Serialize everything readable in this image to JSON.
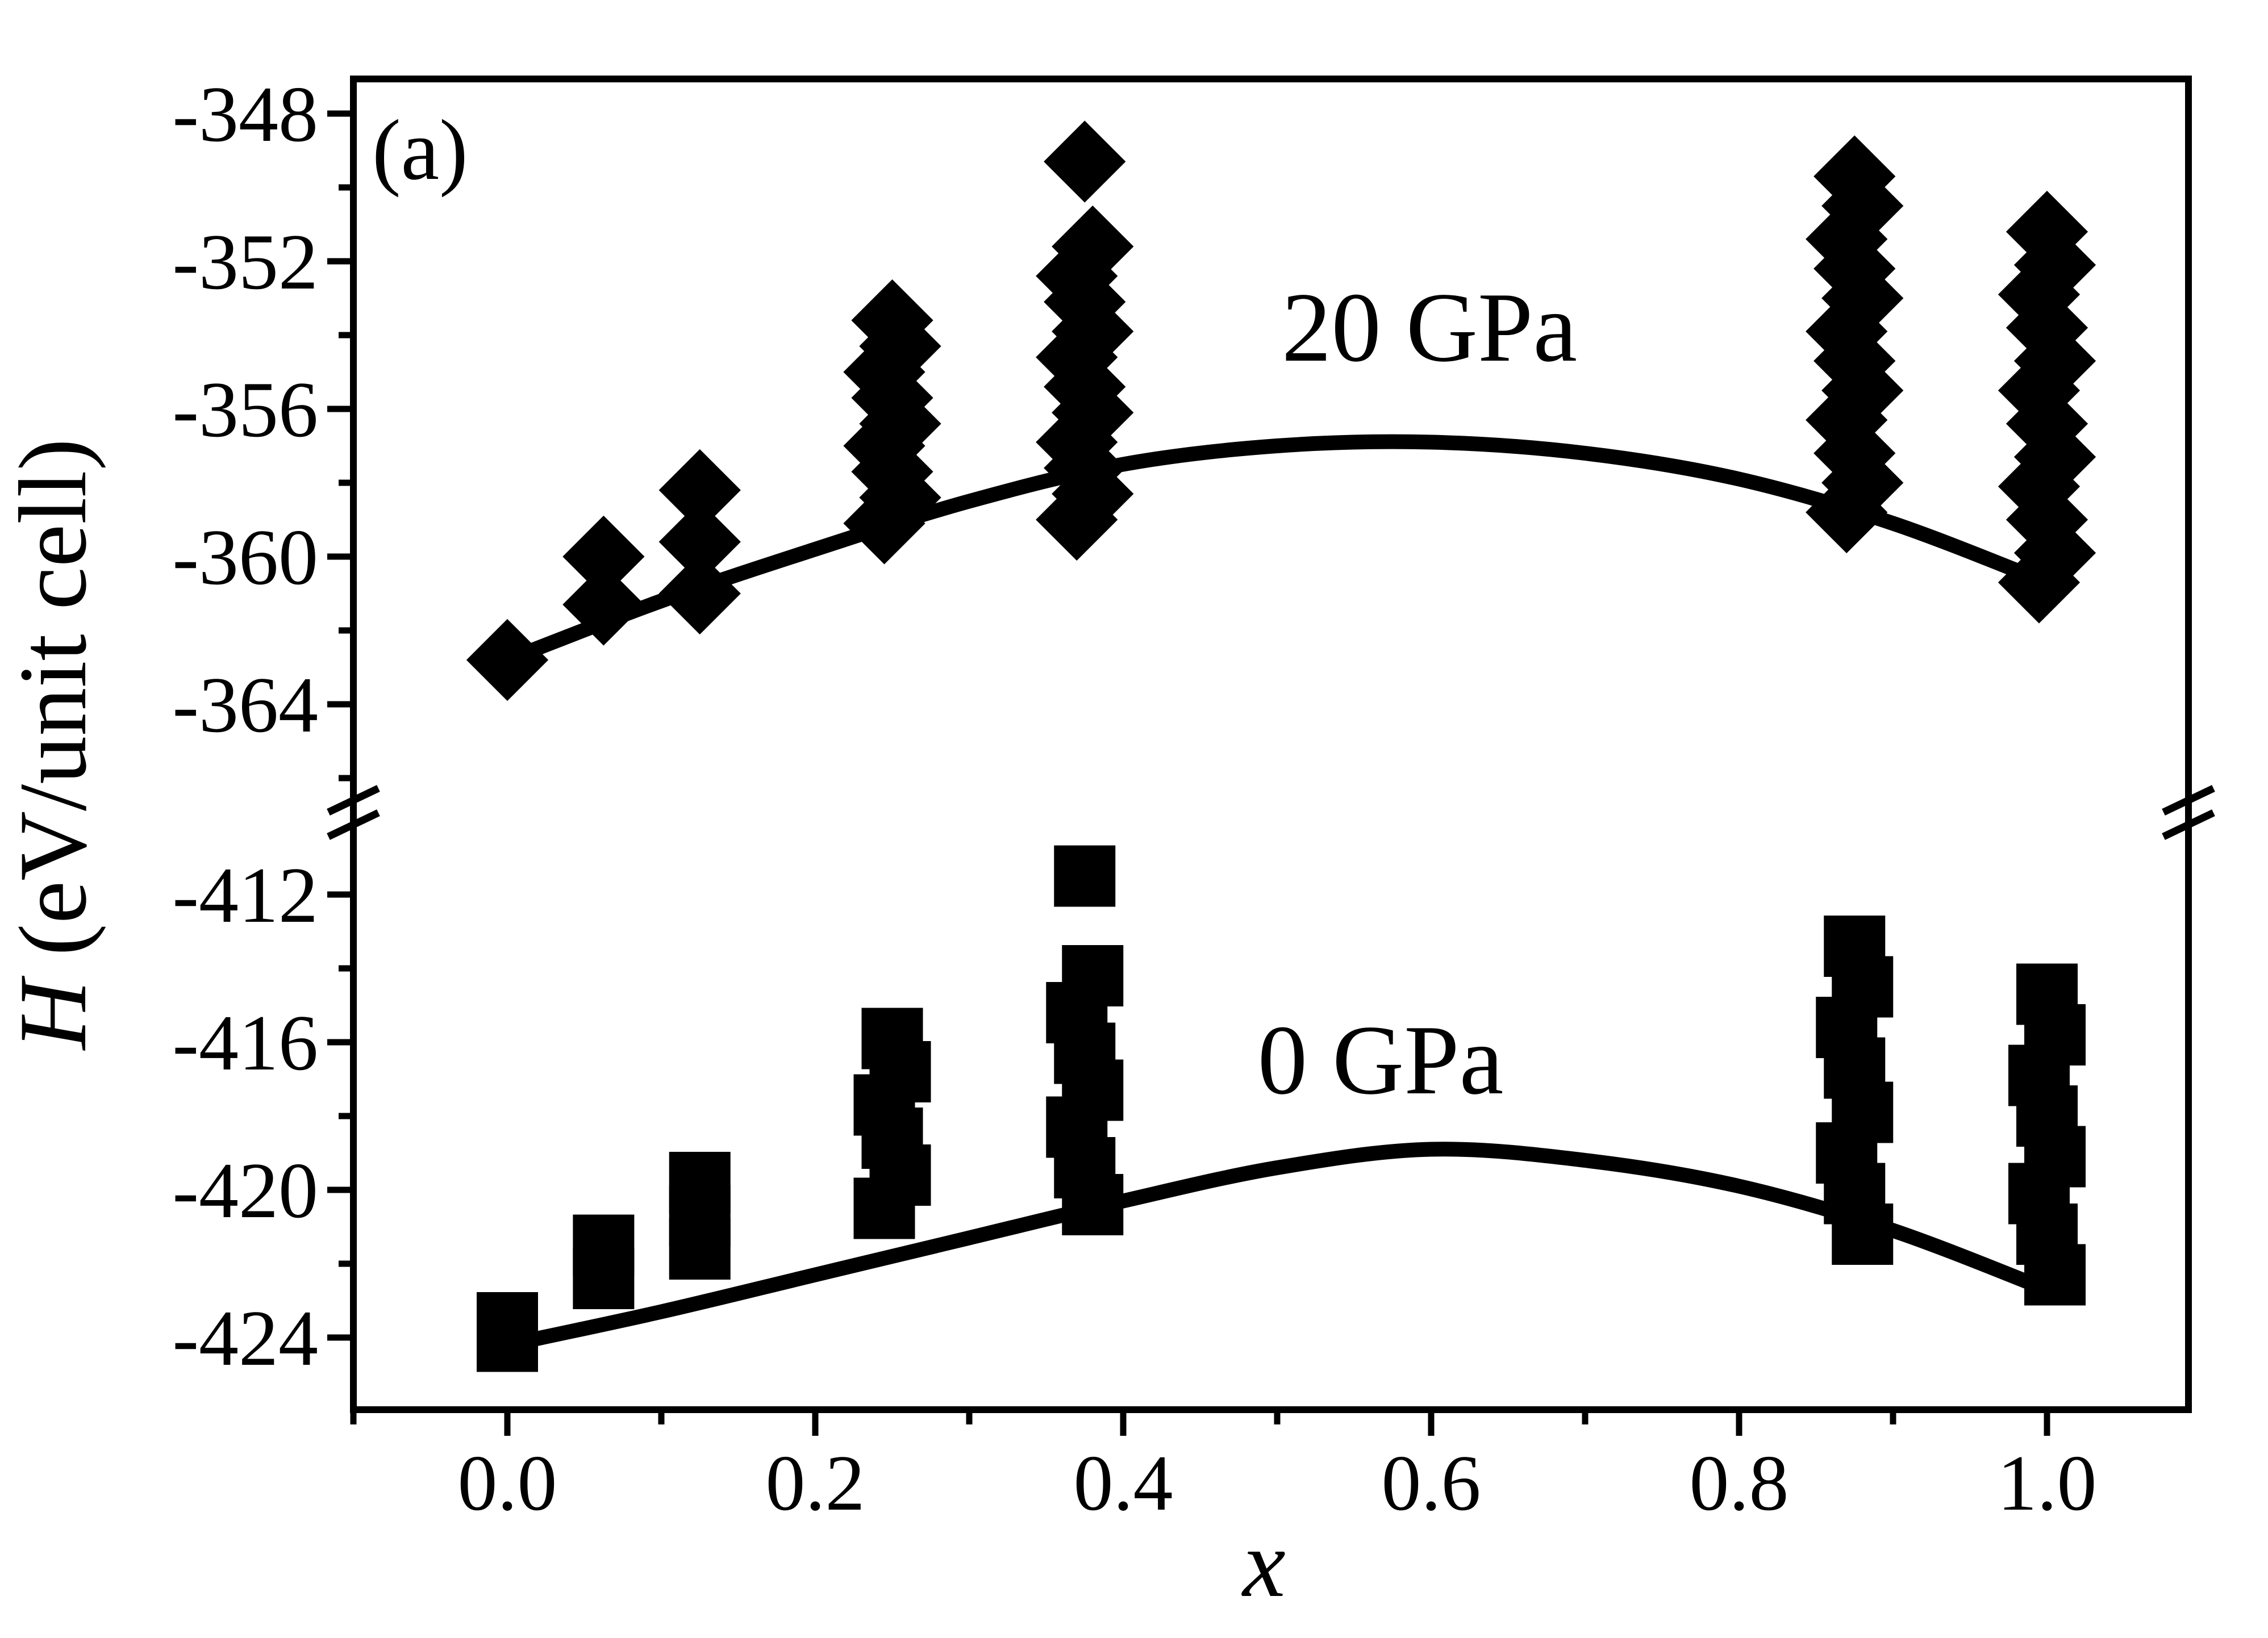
{
  "figure": {
    "panel_label": "(a)",
    "background_color": "#ffffff",
    "ink_color": "#000000"
  },
  "chart_data": {
    "type": "scatter",
    "title": "",
    "xlabel": "x",
    "ylabel_italic_part": "H",
    "ylabel_rest_part": " (eV/unit cell)",
    "ylabel_full": "H (eV/unit cell)",
    "x_axis": {
      "min": -0.1,
      "max": 1.092,
      "major_ticks": [
        0.0,
        0.2,
        0.4,
        0.6,
        0.8,
        1.0
      ],
      "major_tick_labels": [
        "0.0",
        "0.2",
        "0.4",
        "0.6",
        "0.8",
        "1.0"
      ],
      "minor_ticks": [
        -0.1,
        0.1,
        0.3,
        0.5,
        0.7,
        0.9
      ],
      "grid": false
    },
    "y_axis": {
      "broken": true,
      "units": "eV/unit cell",
      "top_segment": {
        "range_low": -366.3,
        "range_high": -347.1,
        "major_ticks": [
          -348,
          -352,
          -356,
          -360,
          -364
        ],
        "major_tick_labels": [
          "-348",
          "-352",
          "-356",
          "-360",
          "-364"
        ],
        "minor_ticks": [
          -350,
          -354,
          -358,
          -362,
          -366
        ]
      },
      "bottom_segment": {
        "range_low": -425.9,
        "range_high": -410.6,
        "major_ticks": [
          -412,
          -416,
          -420,
          -424
        ],
        "major_tick_labels": [
          "-412",
          "-416",
          "-420",
          "-424"
        ],
        "minor_ticks": [
          -414,
          -418,
          -422
        ]
      }
    },
    "legend_position": "none",
    "series": [
      {
        "name": "20 GPa",
        "label": "20 GPa",
        "marker": "diamond",
        "segment": "top",
        "clusters": [
          {
            "x": 0.0,
            "H": [
              -362.8
            ]
          },
          {
            "x": 0.0625,
            "H": [
              -360.0,
              -361.3
            ]
          },
          {
            "x": 0.125,
            "H": [
              -358.2,
              -359.6,
              -361.0
            ]
          },
          {
            "x": 0.25,
            "H": [
              -353.6,
              -354.3,
              -355.0,
              -355.7,
              -356.4,
              -357.0,
              -357.7,
              -358.4,
              -359.1
            ]
          },
          {
            "x": 0.375,
            "H": [
              -349.3,
              -351.6,
              -352.4,
              -353.1,
              -353.9,
              -354.6,
              -355.4,
              -356.1,
              -356.9,
              -357.6,
              -358.3,
              -359.0
            ]
          },
          {
            "x": 0.875,
            "H": [
              -349.7,
              -350.5,
              -351.4,
              -352.2,
              -353.0,
              -353.9,
              -354.7,
              -355.5,
              -356.3,
              -357.2,
              -358.0,
              -358.8
            ]
          },
          {
            "x": 1.0,
            "H": [
              -351.2,
              -352.1,
              -352.9,
              -353.8,
              -354.7,
              -355.5,
              -356.4,
              -357.3,
              -358.1,
              -359.0,
              -359.9,
              -360.7
            ]
          }
        ],
        "fit_curve": {
          "x": [
            0.0,
            0.1,
            0.2,
            0.3,
            0.4,
            0.5,
            0.6,
            0.7,
            0.8,
            0.9,
            1.0
          ],
          "H": [
            -362.8,
            -361.2,
            -359.8,
            -358.5,
            -357.5,
            -357.0,
            -356.9,
            -357.2,
            -357.9,
            -359.1,
            -360.7
          ]
        }
      },
      {
        "name": "0 GPa",
        "label": "0 GPa",
        "marker": "square",
        "segment": "bottom",
        "clusters": [
          {
            "x": 0.0,
            "H": [
              -423.6,
              -424.1
            ]
          },
          {
            "x": 0.0625,
            "H": [
              -421.5,
              -422.4
            ]
          },
          {
            "x": 0.125,
            "H": [
              -419.8,
              -420.7,
              -421.6
            ]
          },
          {
            "x": 0.25,
            "H": [
              -415.9,
              -416.8,
              -417.7,
              -418.6,
              -419.6,
              -420.5
            ]
          },
          {
            "x": 0.375,
            "H": [
              -411.5,
              -414.2,
              -415.2,
              -416.3,
              -417.3,
              -418.3,
              -419.4,
              -420.4
            ]
          },
          {
            "x": 0.875,
            "H": [
              -413.4,
              -414.5,
              -415.6,
              -416.7,
              -417.9,
              -419.0,
              -420.1,
              -421.2
            ]
          },
          {
            "x": 1.0,
            "H": [
              -414.7,
              -415.8,
              -416.9,
              -418.0,
              -419.1,
              -420.1,
              -421.2,
              -422.3
            ]
          }
        ],
        "fit_curve": {
          "x": [
            0.0,
            0.1,
            0.2,
            0.3,
            0.4,
            0.5,
            0.6,
            0.7,
            0.8,
            0.9,
            1.0
          ],
          "H": [
            -424.2,
            -423.3,
            -422.3,
            -421.3,
            -420.3,
            -419.4,
            -418.9,
            -419.2,
            -419.9,
            -421.1,
            -422.7
          ]
        }
      }
    ],
    "annotations": [
      {
        "id": "panel-label",
        "text": "(a)"
      },
      {
        "id": "label-20gpa",
        "text": "20 GPa"
      },
      {
        "id": "label-0gpa",
        "text": "0 GPa"
      }
    ]
  }
}
